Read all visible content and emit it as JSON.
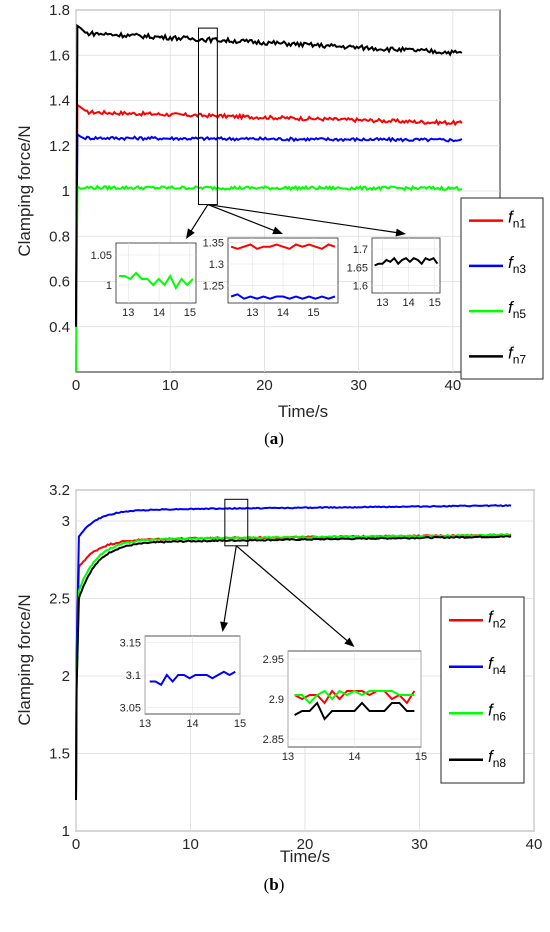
{
  "chart_data": [
    {
      "type": "line",
      "caption_label": "a",
      "xlabel": "Time/s",
      "ylabel": "Clamping force/N",
      "xlim": [
        0,
        45
      ],
      "ylim": [
        0.2,
        1.8
      ],
      "xticks": [
        0,
        10,
        20,
        30,
        40
      ],
      "yticks": [
        0.4,
        0.6,
        0.8,
        1,
        1.2,
        1.4,
        1.6,
        1.8
      ],
      "ytick_labels": [
        "0.4",
        "0.6",
        "0.8",
        "1",
        "1.2",
        "1.4",
        "1.6",
        "1.8"
      ],
      "grid": true,
      "legend_position": "right",
      "series": [
        {
          "name": "f",
          "sub": "n1",
          "color": "#ff0000",
          "start": 0.4,
          "peak": 1.38,
          "steady_start": 1.35,
          "steady_end": 1.3,
          "end_time": 41,
          "noise": 0.008
        },
        {
          "name": "f",
          "sub": "n3",
          "color": "#0000ff",
          "start": 0.4,
          "peak": 1.25,
          "steady_start": 1.235,
          "steady_end": 1.225,
          "end_time": 41,
          "noise": 0.007
        },
        {
          "name": "f",
          "sub": "n5",
          "color": "#00ff00",
          "start": 0.2,
          "peak": 1.02,
          "steady_start": 1.015,
          "steady_end": 1.012,
          "end_time": 41,
          "noise": 0.007
        },
        {
          "name": "f",
          "sub": "n7",
          "color": "#000000",
          "start": 0.4,
          "peak": 1.73,
          "steady_start": 1.7,
          "steady_end": 1.61,
          "end_time": 41,
          "noise": 0.01
        }
      ],
      "highlight": {
        "x": [
          13,
          15
        ],
        "y": [
          0.94,
          1.72
        ]
      },
      "insets": [
        {
          "xticks": [
            13,
            14,
            15
          ],
          "yticks": [
            "1.05",
            "1"
          ],
          "ylim": [
            0.97,
            1.07
          ],
          "xlim": [
            12.6,
            15.2
          ],
          "lines": [
            {
              "color": "#00ff00",
              "values": [
                1.015,
                1.015,
                1.01,
                1.02,
                1.01,
                1.01,
                1.0,
                1.01,
                1.0,
                1.015,
                0.995,
                1.01,
                1.0,
                1.01
              ]
            }
          ]
        },
        {
          "xticks": [
            13,
            14,
            15
          ],
          "yticks": [
            "1.35",
            "1.3",
            "1.25"
          ],
          "ylim": [
            1.21,
            1.36
          ],
          "xlim": [
            12.2,
            15.8
          ],
          "lines": [
            {
              "color": "#ff0000",
              "values": [
                1.34,
                1.335,
                1.34,
                1.345,
                1.335,
                1.34,
                1.34,
                1.345,
                1.34,
                1.335,
                1.345,
                1.34,
                1.345,
                1.34,
                1.335,
                1.345,
                1.34
              ]
            },
            {
              "color": "#0000ff",
              "values": [
                1.225,
                1.23,
                1.22,
                1.225,
                1.22,
                1.225,
                1.22,
                1.225,
                1.225,
                1.22,
                1.225,
                1.22,
                1.225,
                1.22,
                1.225,
                1.22,
                1.225
              ]
            }
          ]
        },
        {
          "xticks": [
            13,
            14,
            15
          ],
          "yticks": [
            "1.7",
            "1.65",
            "1.6"
          ],
          "ylim": [
            1.58,
            1.73
          ],
          "xlim": [
            12.6,
            15.2
          ],
          "lines": [
            {
              "color": "#000000",
              "values": [
                1.655,
                1.66,
                1.66,
                1.67,
                1.665,
                1.675,
                1.66,
                1.67,
                1.675,
                1.665,
                1.675,
                1.67,
                1.66,
                1.675,
                1.67,
                1.675,
                1.66
              ]
            }
          ]
        }
      ]
    },
    {
      "type": "line",
      "caption_label": "b",
      "xlabel": "Time/s",
      "ylabel": "Clamping force/N",
      "xlim": [
        0,
        40
      ],
      "ylim": [
        1,
        3.2
      ],
      "xticks": [
        0,
        10,
        20,
        30,
        40
      ],
      "yticks": [
        1,
        1.5,
        2,
        2.5,
        3,
        3.2
      ],
      "ytick_labels": [
        "1",
        "1.5",
        "2",
        "2.5",
        "3",
        "3.2"
      ],
      "grid": true,
      "legend_position": "right",
      "series": [
        {
          "name": "f",
          "sub": "n2",
          "color": "#ff0000",
          "start": 1.2,
          "knee": 2.7,
          "steady_start": 2.88,
          "steady_end": 2.91,
          "end_time": 38,
          "noise": 0.005
        },
        {
          "name": "f",
          "sub": "n4",
          "color": "#0000ff",
          "start": 1.2,
          "knee": 2.9,
          "steady_start": 3.07,
          "steady_end": 3.1,
          "end_time": 38,
          "noise": 0.003
        },
        {
          "name": "f",
          "sub": "n6",
          "color": "#00ff00",
          "start": 1.2,
          "knee": 2.55,
          "steady_start": 2.88,
          "steady_end": 2.91,
          "end_time": 38,
          "noise": 0.005
        },
        {
          "name": "f",
          "sub": "n8",
          "color": "#000000",
          "start": 1.2,
          "knee": 2.5,
          "steady_start": 2.86,
          "steady_end": 2.9,
          "end_time": 38,
          "noise": 0.004
        }
      ],
      "highlight": {
        "x": [
          13,
          15
        ],
        "y": [
          2.84,
          3.14
        ]
      },
      "insets": [
        {
          "xticks": [
            13,
            14,
            15
          ],
          "yticks": [
            "3.15",
            "3.1",
            "3.05"
          ],
          "ylim": [
            3.04,
            3.16
          ],
          "xlim": [
            13,
            15
          ],
          "lines": [
            {
              "color": "#0000ff",
              "values": [
                3.09,
                3.09,
                3.085,
                3.1,
                3.09,
                3.1,
                3.1,
                3.095,
                3.1,
                3.1,
                3.1,
                3.095,
                3.1,
                3.105,
                3.1,
                3.105
              ]
            }
          ]
        },
        {
          "xticks": [
            13,
            14,
            15
          ],
          "yticks": [
            "2.95",
            "2.9",
            "2.85"
          ],
          "ylim": [
            2.84,
            2.96
          ],
          "xlim": [
            13,
            15
          ],
          "lines": [
            {
              "color": "#ff0000",
              "values": [
                2.905,
                2.9,
                2.905,
                2.905,
                2.895,
                2.91,
                2.9,
                2.91,
                2.91,
                2.91,
                2.905,
                2.91,
                2.91,
                2.9,
                2.905,
                2.895,
                2.91
              ]
            },
            {
              "color": "#00ff00",
              "values": [
                2.905,
                2.905,
                2.895,
                2.905,
                2.91,
                2.9,
                2.91,
                2.905,
                2.91,
                2.905,
                2.91,
                2.91,
                2.91,
                2.91,
                2.905,
                2.905,
                2.905
              ]
            },
            {
              "color": "#000000",
              "values": [
                2.88,
                2.885,
                2.885,
                2.895,
                2.875,
                2.885,
                2.885,
                2.885,
                2.885,
                2.895,
                2.885,
                2.885,
                2.885,
                2.895,
                2.895,
                2.885,
                2.885
              ]
            }
          ]
        }
      ]
    }
  ]
}
